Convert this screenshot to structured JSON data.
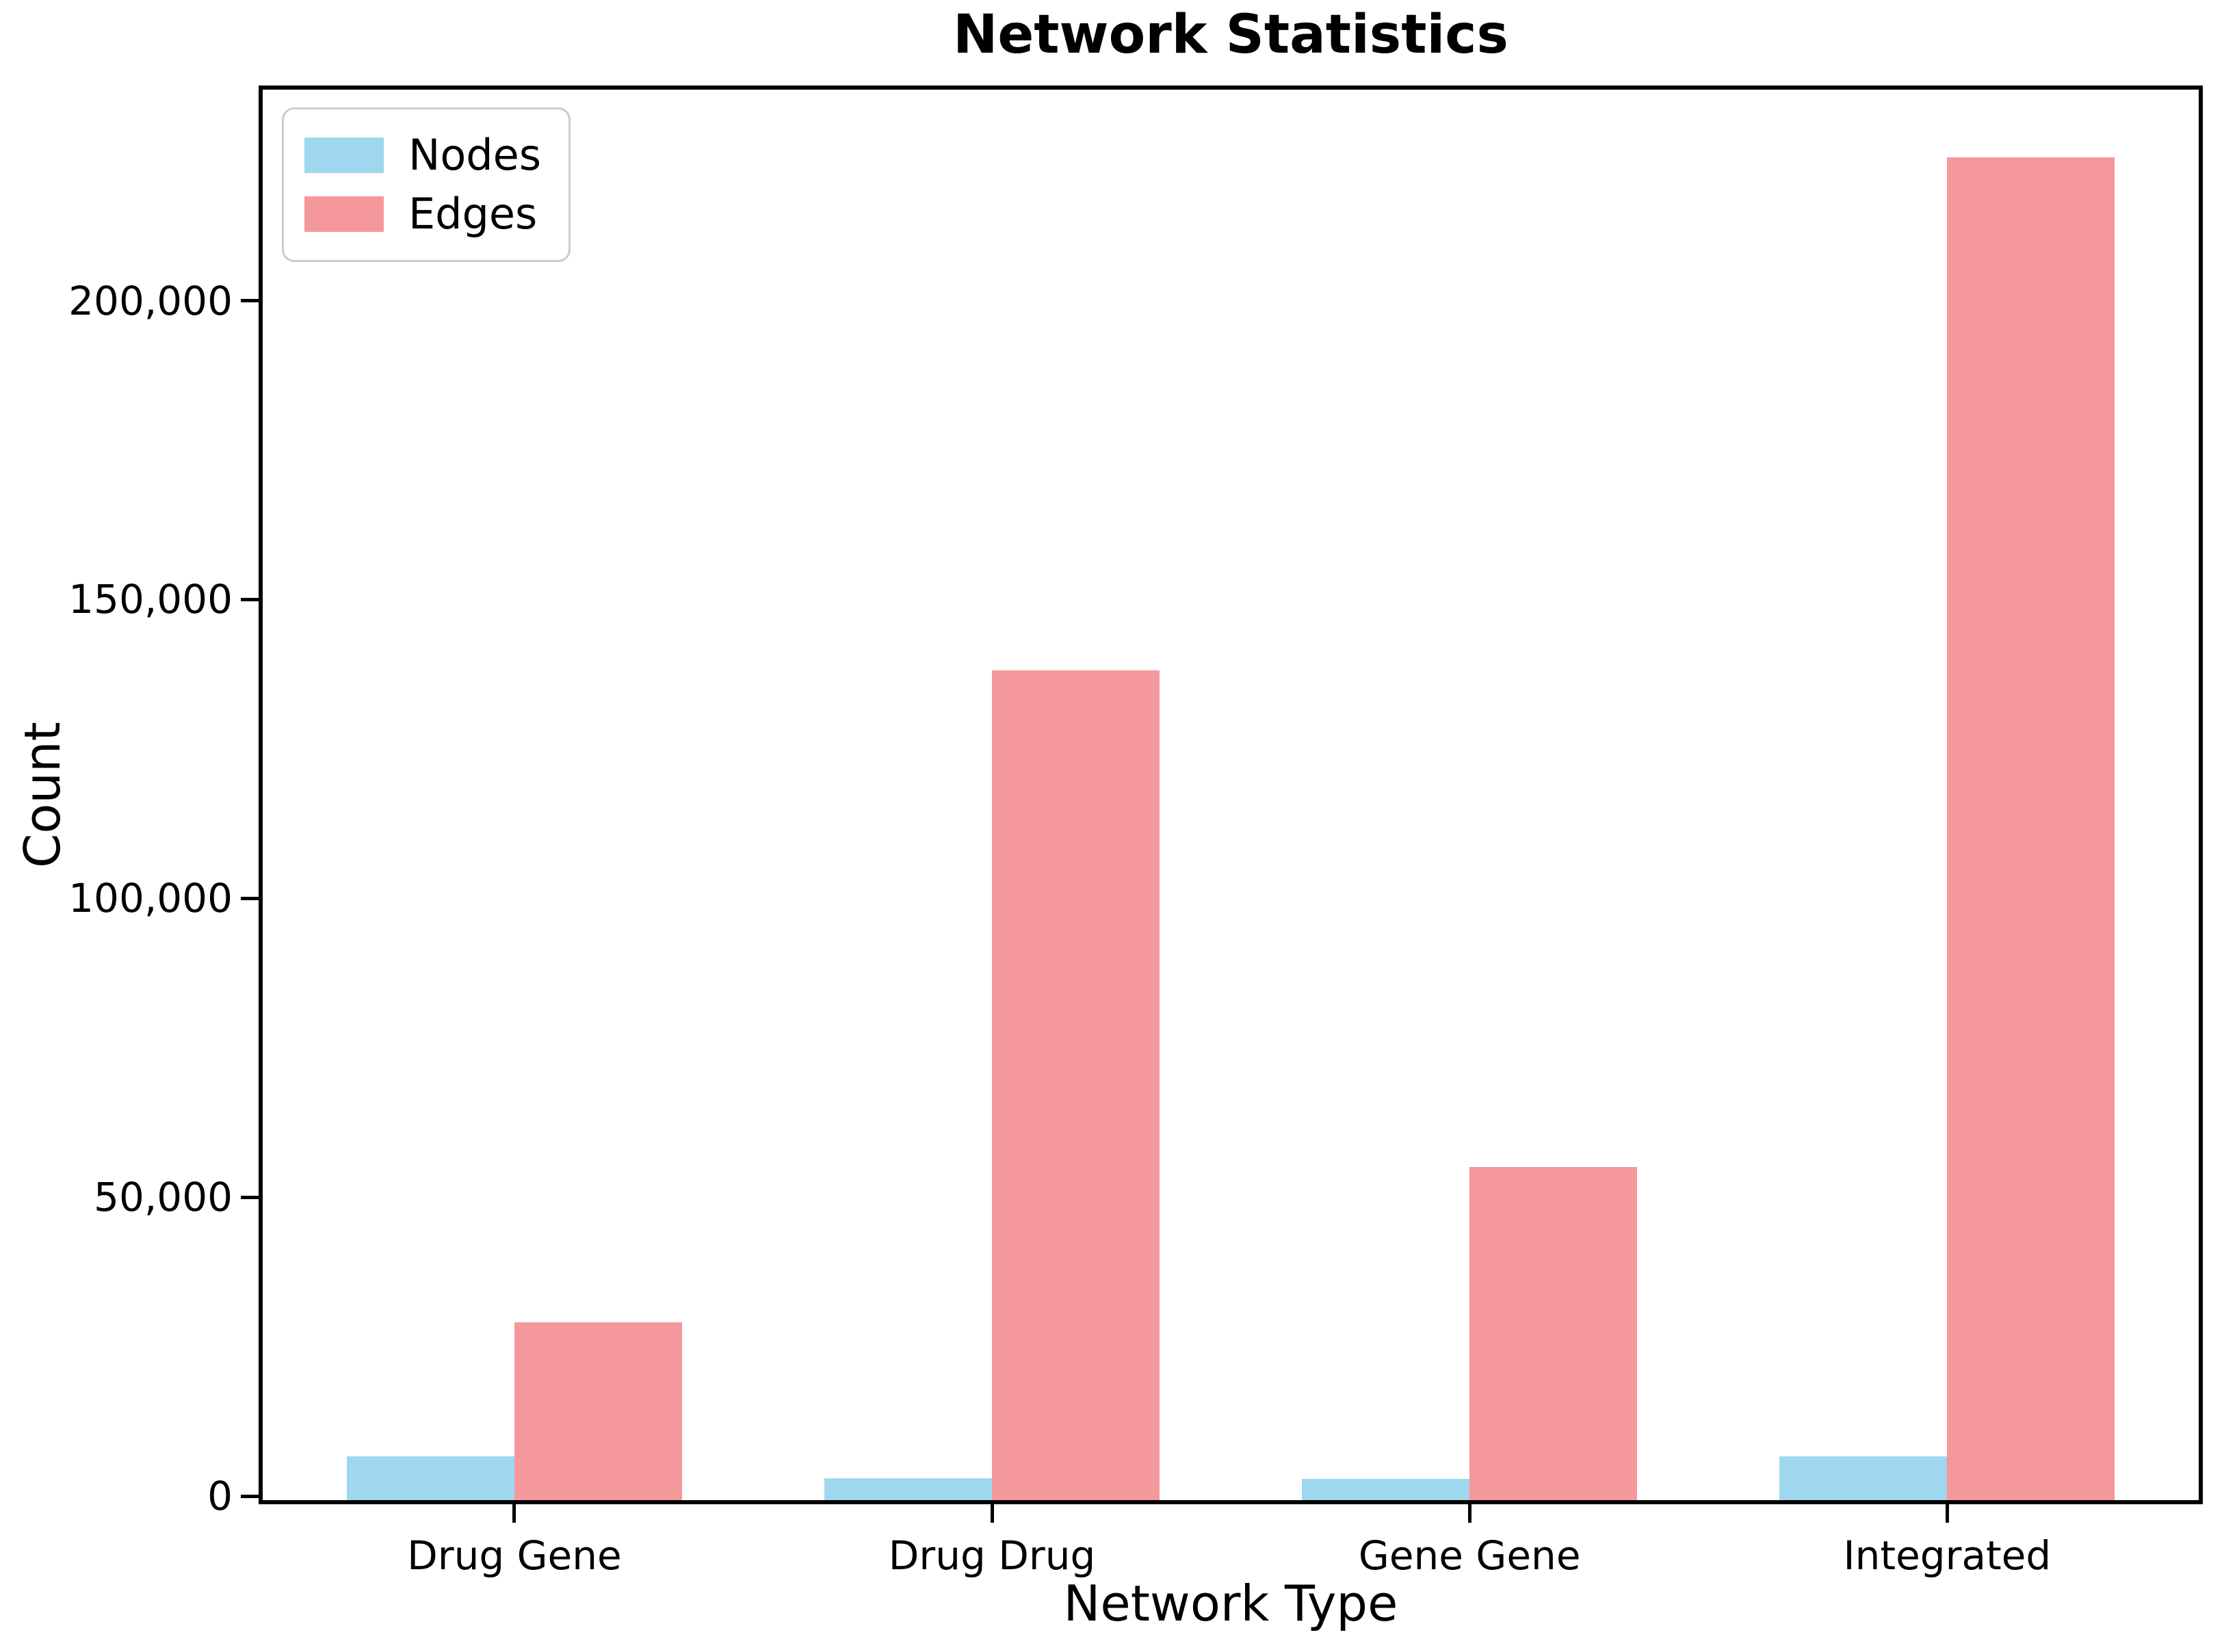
{
  "title": "Network Statistics",
  "chart_data": {
    "type": "bar",
    "title": "Network Statistics",
    "xlabel": "Network Type",
    "ylabel": "Count",
    "categories": [
      "Drug Gene",
      "Drug Drug",
      "Gene Gene",
      "Integrated"
    ],
    "series": [
      {
        "name": "Nodes",
        "color": "#9ED7EE",
        "values": [
          7300,
          3650,
          3550,
          7300
        ]
      },
      {
        "name": "Edges",
        "color": "#F4989C",
        "values": [
          29800,
          138800,
          55700,
          224700
        ]
      }
    ],
    "ylim": [
      0,
      236000
    ],
    "yticks": [
      {
        "value": 0,
        "label": "0"
      },
      {
        "value": 50000,
        "label": "50,000"
      },
      {
        "value": 100000,
        "label": "100,000"
      },
      {
        "value": 150000,
        "label": "150,000"
      },
      {
        "value": 200000,
        "label": "200,000"
      }
    ],
    "legend_position": "upper left",
    "grid": false
  }
}
